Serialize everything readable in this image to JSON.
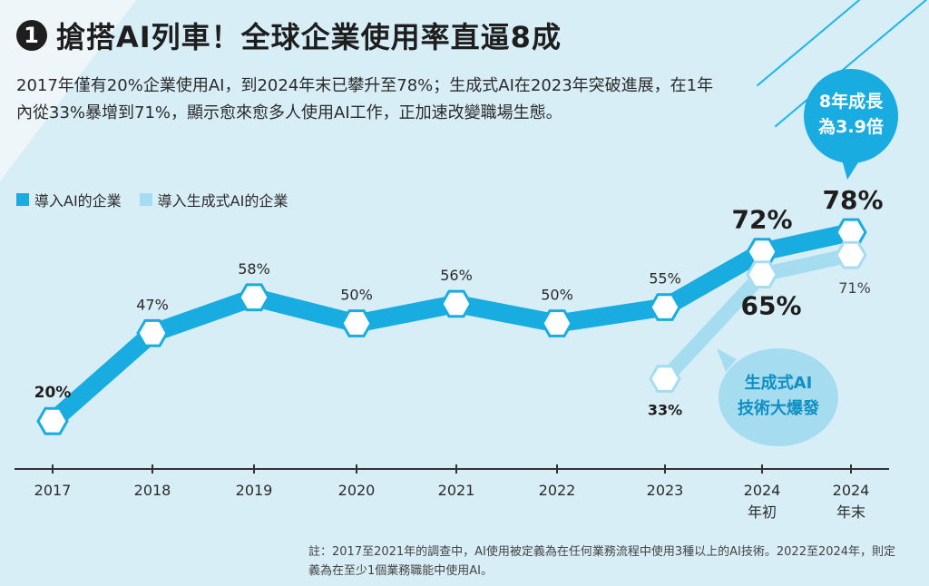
{
  "header": {
    "badge": "1",
    "title": "搶搭AI列車！全球企業使用率直逼8成"
  },
  "description": "2017年僅有20%企業使用AI，到2024年末已攀升至78%；生成式AI在2023年突破進展，在1年內從33%暴增到71%，顯示愈來愈多人使用AI工作，正加速改變職場生態。",
  "legend": [
    {
      "label": "導入AI的企業",
      "color": "#18ace0"
    },
    {
      "label": "導入生成式AI的企業",
      "color": "#a6dcf0"
    }
  ],
  "callouts": {
    "growth": "8年成長\n為3.9倍",
    "genai_burst": "生成式AI\n技術大爆發"
  },
  "note": "註：2017至2021年的調查中，AI使用被定義為在任何業務流程中使用3種以上的AI技術。2022至2024年，則定義為在至少1個業務職能中使用AI。",
  "chart_data": {
    "type": "line",
    "categories": [
      "2017",
      "2018",
      "2019",
      "2020",
      "2021",
      "2022",
      "2023",
      "2024\n年初",
      "2024\n年末"
    ],
    "ylim": [
      0,
      100
    ],
    "series": [
      {
        "name": "導入AI的企業",
        "color": "#18ace0",
        "values": [
          20,
          47,
          58,
          50,
          56,
          50,
          55,
          72,
          78
        ],
        "labels": [
          "20%",
          "47%",
          "58%",
          "50%",
          "56%",
          "50%",
          "55%",
          "72%",
          "78%"
        ]
      },
      {
        "name": "導入生成式AI的企業",
        "color": "#a6dcf0",
        "values": [
          null,
          null,
          null,
          null,
          null,
          null,
          33,
          65,
          71
        ],
        "labels": [
          "",
          "",
          "",
          "",
          "",
          "",
          "33%",
          "65%",
          "71%"
        ]
      }
    ]
  }
}
